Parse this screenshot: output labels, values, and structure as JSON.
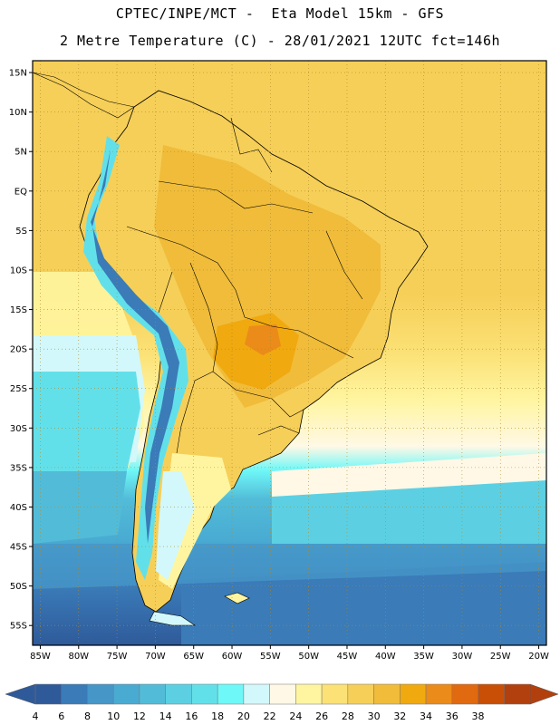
{
  "header": {
    "title_line1": "CPTEC/INPE/MCT -  Eta Model 15km - GFS",
    "title_line2": "2 Metre Temperature (C) - 28/01/2021 12UTC fct=146h"
  },
  "map": {
    "lat_labels": [
      "15N",
      "10N",
      "5N",
      "EQ",
      "5S",
      "10S",
      "15S",
      "20S",
      "25S",
      "30S",
      "35S",
      "40S",
      "45S",
      "50S",
      "55S"
    ],
    "lon_labels": [
      "85W",
      "80W",
      "75W",
      "70W",
      "65W",
      "60W",
      "55W",
      "50W",
      "45W",
      "40W",
      "35W",
      "30W",
      "25W",
      "20W"
    ],
    "lat_values": [
      15,
      10,
      5,
      0,
      -5,
      -10,
      -15,
      -20,
      -25,
      -30,
      -35,
      -40,
      -45,
      -50,
      -55
    ],
    "lon_values": [
      -85,
      -80,
      -75,
      -70,
      -65,
      -60,
      -55,
      -50,
      -45,
      -40,
      -35,
      -30,
      -25,
      -20
    ],
    "extent": {
      "lon_min": -86,
      "lon_max": -19,
      "lat_min": -57.5,
      "lat_max": 16.5
    },
    "grid": true
  },
  "colorbar": {
    "labels": [
      "4",
      "6",
      "8",
      "10",
      "12",
      "14",
      "16",
      "18",
      "20",
      "22",
      "24",
      "26",
      "28",
      "30",
      "32",
      "34",
      "36",
      "38"
    ],
    "colors": [
      "#2f5a9a",
      "#3a7bb8",
      "#4696c8",
      "#49abd2",
      "#52bcd8",
      "#5cd0e2",
      "#62e0ea",
      "#6ff8f8",
      "#d2f8fb",
      "#fff8e6",
      "#fff5a0",
      "#fbe176",
      "#f6cf58",
      "#f0bc3a",
      "#f0a90f",
      "#ea8b1a",
      "#e1690f",
      "#c84f05",
      "#b2400e"
    ],
    "low_color": "#2f5a9a",
    "high_color": "#b2400e"
  }
}
